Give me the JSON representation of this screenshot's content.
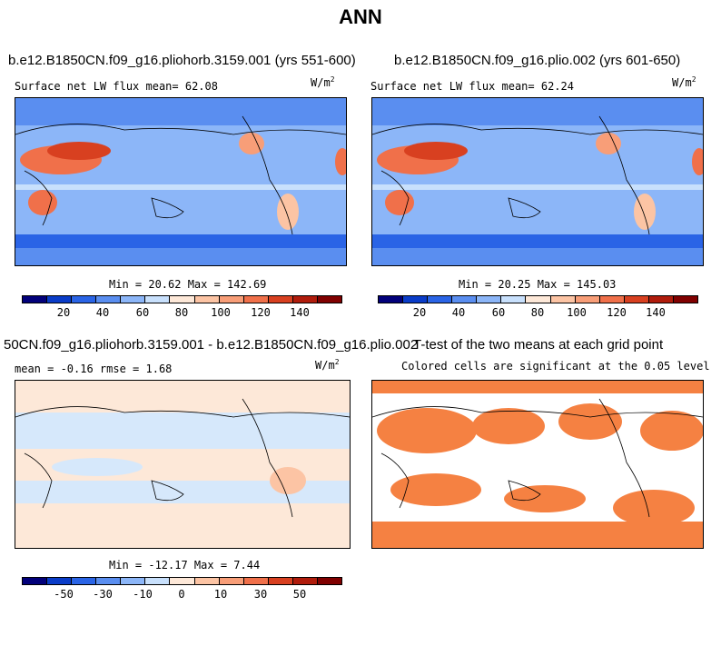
{
  "title": "ANN",
  "panels": {
    "p1": {
      "title": "b.e12.B1850CN.f09_g16.pliohorb.3159.001 (yrs 551-600)",
      "label": "Surface net LW flux mean=   62.08",
      "units": "W/m",
      "units_exp": "2",
      "minmax": "Min =  20.62 Max = 142.69"
    },
    "p2": {
      "title": "b.e12.B1850CN.f09_g16.plio.002 (yrs 601-650)",
      "label": "Surface net LW flux mean=   62.24",
      "units": "W/m",
      "units_exp": "2",
      "minmax": "Min =  20.25 Max = 145.03"
    },
    "p3": {
      "title": "50CN.f09_g16.pliohorb.3159.001 - b.e12.B1850CN.f09_g16.plio.002",
      "label": "mean =  -0.16    rmse =   1.68",
      "units": "W/m",
      "units_exp": "2",
      "minmax": "Min = -12.17 Max =   7.44"
    },
    "p4": {
      "title": "T-test of the two means at each grid point",
      "label": "Colored cells are significant at the 0.05 level"
    }
  },
  "colorbar_colors": [
    "#02007a",
    "#0a3cc8",
    "#2a64e6",
    "#5a8ef0",
    "#8cb6f8",
    "#c8e0fc",
    "#fde8d8",
    "#fcc4a4",
    "#f89e78",
    "#f0704a",
    "#d84020",
    "#b01c0c",
    "#800000"
  ],
  "colorbar1_ticks": [
    "20",
    "40",
    "60",
    "80",
    "100",
    "120",
    "140"
  ],
  "colorbar2_ticks": [
    "-50",
    "-30",
    "-10",
    "0",
    "10",
    "30",
    "50"
  ],
  "colors": {
    "ocean_blue": "#5a8ef0",
    "land_warm": "#f0704a",
    "diff_light_blue": "#d6e8fb",
    "diff_light_orange": "#fde8d8",
    "sig_orange": "#f58142"
  }
}
